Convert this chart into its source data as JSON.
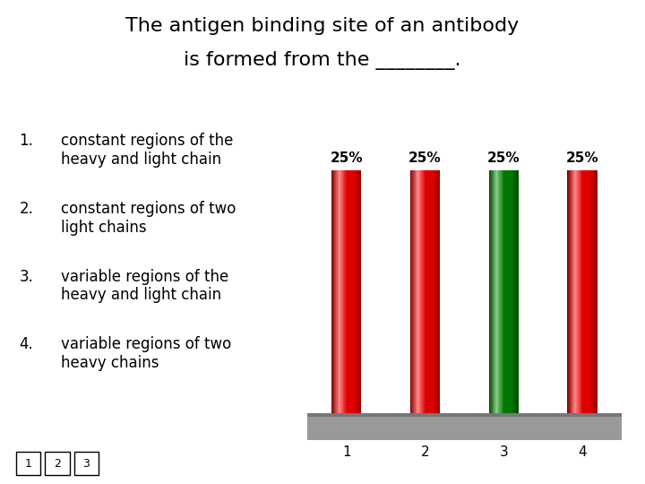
{
  "title_line1": "The antigen binding site of an antibody",
  "title_line2": "is formed from the ________.",
  "option_nums": [
    "1.",
    "2.",
    "3.",
    "4."
  ],
  "option_texts": [
    "constant regions of the\nheavy and light chain",
    "constant regions of two\nlight chains",
    "variable regions of the\nheavy and light chain",
    "variable regions of two\nheavy chains"
  ],
  "bar_labels": [
    "1",
    "2",
    "3",
    "4"
  ],
  "bar_values": [
    25,
    25,
    25,
    25
  ],
  "bar_colors_main": [
    "#dd0000",
    "#dd0000",
    "#007700",
    "#dd0000"
  ],
  "bar_colors_light": [
    "#ff8888",
    "#ff8888",
    "#88cc88",
    "#ff8888"
  ],
  "bar_colors_dark": [
    "#880000",
    "#880000",
    "#004400",
    "#880000"
  ],
  "bar_percentage_labels": [
    "25%",
    "25%",
    "25%",
    "25%"
  ],
  "background_color": "#ffffff",
  "text_color": "#000000",
  "footer_boxes": [
    "1",
    "2",
    "3"
  ],
  "platform_color": "#999999",
  "platform_color_dark": "#777777"
}
